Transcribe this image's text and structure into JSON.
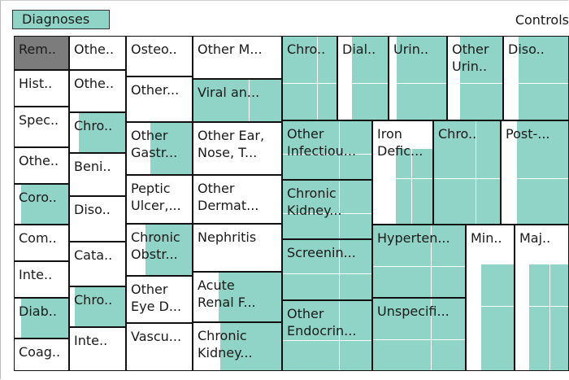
{
  "header": {
    "title": "Diagnoses",
    "controls": "Controls"
  },
  "colors": {
    "fill": "#8fd4c6",
    "selected": "#7c7c7c",
    "border": "#111111",
    "background": "#ffffff"
  },
  "chart_data": {
    "type": "treemap",
    "title": "Diagnoses",
    "cells": [
      {
        "label": "Rem..",
        "fraction": 1.0,
        "selected": true
      },
      {
        "label": "Hist..",
        "fraction": 0
      },
      {
        "label": "Spec..",
        "fraction": 0
      },
      {
        "label": "Othe..",
        "fraction": 0
      },
      {
        "label": "Coro..",
        "fraction": 0.85
      },
      {
        "label": "Com..",
        "fraction": 0
      },
      {
        "label": "Inte..",
        "fraction": 0
      },
      {
        "label": "Diab..",
        "fraction": 0.85
      },
      {
        "label": "Coag..",
        "fraction": 0
      },
      {
        "label": "Othe..",
        "fraction": 0
      },
      {
        "label": "Othe..",
        "fraction": 0
      },
      {
        "label": "Chro..",
        "fraction": 0.82
      },
      {
        "label": "Beni..",
        "fraction": 0
      },
      {
        "label": "Diso..",
        "fraction": 0
      },
      {
        "label": "Cata..",
        "fraction": 0
      },
      {
        "label": "Chro..",
        "fraction": 0.88
      },
      {
        "label": "Inte..",
        "fraction": 0
      },
      {
        "label": "Osteo..",
        "fraction": 0
      },
      {
        "label": "Other...",
        "fraction": 0
      },
      {
        "label": "Other\nGastr...",
        "fraction": 0.62
      },
      {
        "label": "Peptic\nUlcer,...",
        "fraction": 0
      },
      {
        "label": "Chronic\nObstr...",
        "fraction": 0.7
      },
      {
        "label": "Other\nEye D...",
        "fraction": 0
      },
      {
        "label": "Vascu...",
        "fraction": 0
      },
      {
        "label": "Other M...",
        "fraction": 0
      },
      {
        "label": "Viral an...",
        "fraction": 1.0
      },
      {
        "label": "Other Ear,\nNose, T...",
        "fraction": 0
      },
      {
        "label": "Other\nDermat...",
        "fraction": 0
      },
      {
        "label": "Nephritis",
        "fraction": 0
      },
      {
        "label": "Acute\nRenal F...",
        "fraction": 0.7
      },
      {
        "label": "Chronic\nKidney...",
        "fraction": 0.68
      },
      {
        "label": "Chro..",
        "fraction": 1.0
      },
      {
        "label": "Dial..",
        "fraction": 0.7
      },
      {
        "label": "Urin..",
        "fraction": 0.85
      },
      {
        "label": "Other\nUrin..",
        "fraction": 0.75
      },
      {
        "label": "Diso..",
        "fraction": 0.75
      },
      {
        "label": "Other\nInfectiou...",
        "fraction": 1.0
      },
      {
        "label": "Iron\nDefic...",
        "fraction": 0.6
      },
      {
        "label": "Chro..",
        "fraction": 1.0
      },
      {
        "label": "Post-...",
        "fraction": 0.75
      },
      {
        "label": "Chronic\nKidney...",
        "fraction": 1.0
      },
      {
        "label": "Screenin...",
        "fraction": 1.0
      },
      {
        "label": "Hyperten...",
        "fraction": 1.0
      },
      {
        "label": "Min..",
        "fraction": 0.67
      },
      {
        "label": "Maj..",
        "fraction": 0.72
      },
      {
        "label": "Other\nEndocrin...",
        "fraction": 1.0
      },
      {
        "label": "Unspecifi...",
        "fraction": 1.0
      }
    ]
  }
}
